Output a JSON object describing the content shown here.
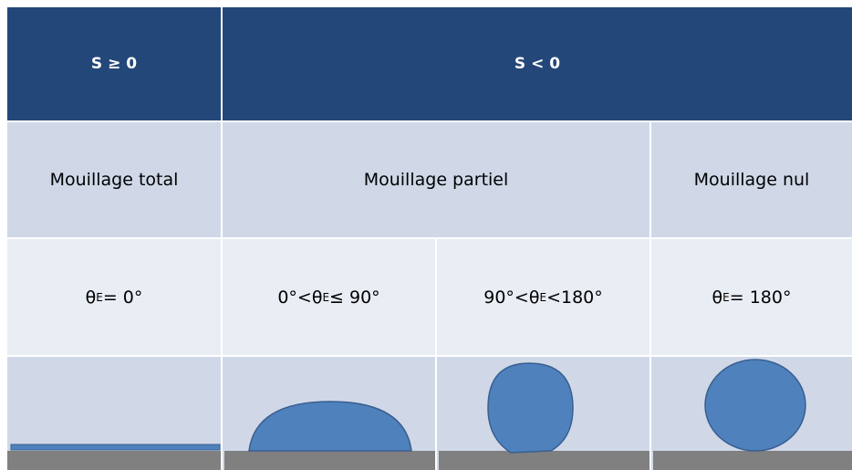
{
  "header": {
    "cells": [
      "S ≥ 0",
      "S < 0"
    ]
  },
  "wetting": [
    "Mouillage total",
    "Mouillage partiel",
    "Mouillage nul"
  ],
  "angles": [
    {
      "before": "θ",
      "sub": "E",
      "after": " = 0°"
    },
    {
      "before": "0°<θ",
      "sub": "E",
      "after": " ≤ 90°"
    },
    {
      "before": "90°<θ",
      "sub": "E",
      "after": "<180°"
    },
    {
      "before": "θ",
      "sub": "E",
      "after": " = 180°"
    }
  ]
}
